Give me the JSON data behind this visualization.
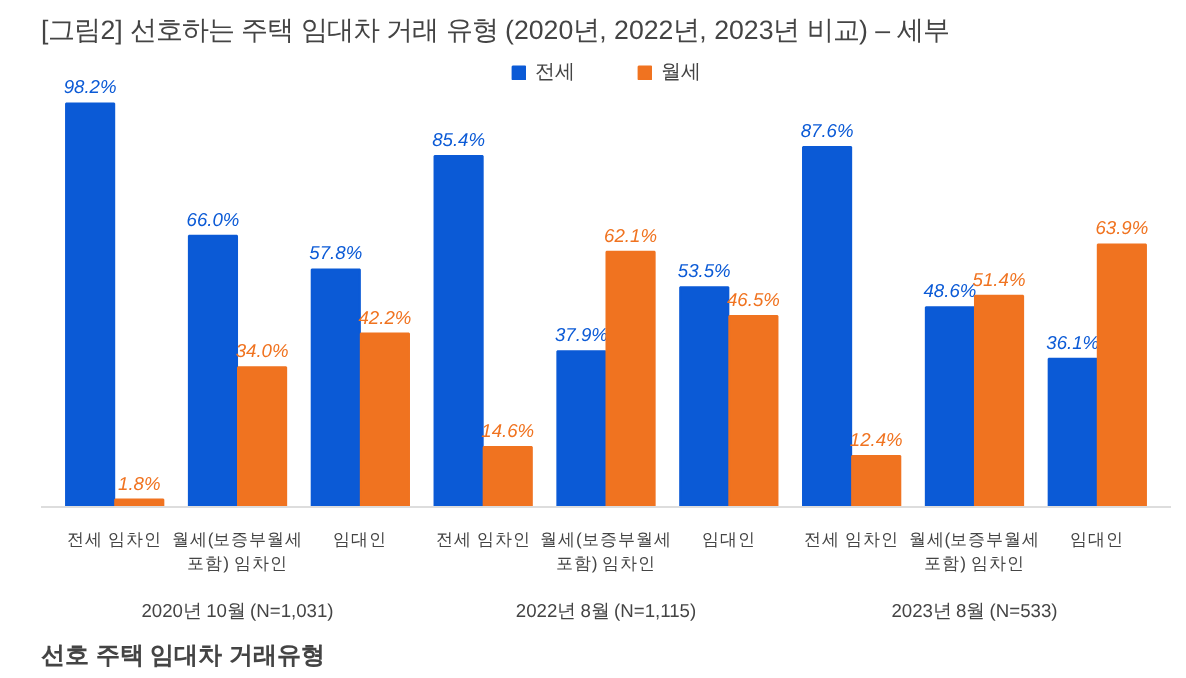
{
  "chart_data": {
    "type": "bar",
    "title": "[그림2] 선호하는 주택 임대차 거래 유형 (2020년, 2022년, 2023년 비교) – 세부",
    "categories": [
      "전세 임차인",
      "월세(보증부월세\n포함) 임차인",
      "임대인",
      "전세 임차인",
      "월세(보증부월세\n포함) 임차인",
      "임대인",
      "전세 임차인",
      "월세(보증부월세\n포함) 임차인",
      "임대인"
    ],
    "series": [
      {
        "name": "전세",
        "color": "#0b5ad6",
        "values": [
          98.2,
          66.0,
          57.8,
          85.4,
          37.9,
          53.5,
          87.6,
          48.6,
          36.1
        ],
        "value_labels": [
          "98.2%",
          "66.0%",
          "57.8%",
          "85.4%",
          "37.9%",
          "53.5%",
          "87.6%",
          "48.6%",
          "36.1%"
        ]
      },
      {
        "name": "월세",
        "color": "#f07320",
        "values": [
          1.8,
          34.0,
          42.2,
          14.6,
          62.1,
          46.5,
          12.4,
          51.4,
          63.9
        ],
        "value_labels": [
          "1.8%",
          "34.0%",
          "42.2%",
          "14.6%",
          "62.1%",
          "46.5%",
          "12.4%",
          "51.4%",
          "63.9%"
        ]
      }
    ],
    "legend": "top",
    "annotations": [
      "2020년 10월 (N=1,031)",
      "2022년 8월 (N=1,115)",
      "2023년 8월 (N=533)",
      "선호 주택 임대차 거래유형"
    ]
  }
}
